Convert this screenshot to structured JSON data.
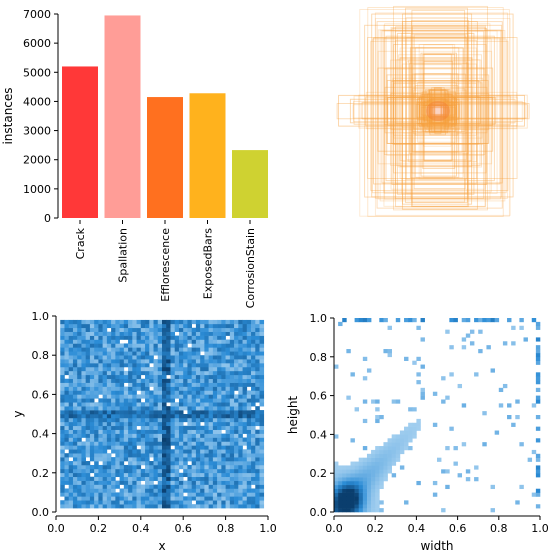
{
  "chart_data": [
    {
      "type": "bar",
      "ylabel": "instances",
      "categories": [
        "Crack",
        "Spallation",
        "Efflorescence",
        "ExposedBars",
        "CorrosionStain"
      ],
      "values": [
        5200,
        6950,
        4150,
        4280,
        2330
      ],
      "colors": [
        "#ff3838",
        "#ff9d97",
        "#ff701f",
        "#ffb21d",
        "#cfd231"
      ],
      "ylim": [
        0,
        7000
      ],
      "yticks": [
        0,
        1000,
        2000,
        3000,
        4000,
        5000,
        6000,
        7000
      ],
      "ytick_labels": [
        "0",
        "1000",
        "2000",
        "3000",
        "4000",
        "5000",
        "6000",
        "7000"
      ],
      "grid": false
    },
    {
      "type": "scatter",
      "subtype": "box-overlay",
      "colors": {
        "stroke": "#f7a03c",
        "center": "#f0642a"
      }
    },
    {
      "type": "heatmap",
      "xlabel": "x",
      "ylabel": "y",
      "xlim": [
        0,
        1
      ],
      "ylim": [
        0,
        1
      ],
      "xticks": [
        0.0,
        0.2,
        0.4,
        0.6,
        0.8,
        1.0
      ],
      "xtick_labels": [
        "0.0",
        "0.2",
        "0.4",
        "0.6",
        "0.8",
        "1.0"
      ],
      "yticks": [
        0.0,
        0.2,
        0.4,
        0.6,
        0.8,
        1.0
      ],
      "ytick_labels": [
        "0.0",
        "0.2",
        "0.4",
        "0.6",
        "0.8",
        "1.0"
      ],
      "bins": 50,
      "colors": {
        "low": "#c7e3f7",
        "high": "#0a3e6e"
      }
    },
    {
      "type": "heatmap",
      "xlabel": "width",
      "ylabel": "height",
      "xlim": [
        0,
        1
      ],
      "ylim": [
        0,
        1
      ],
      "xticks": [
        0.0,
        0.2,
        0.4,
        0.6,
        0.8,
        1.0
      ],
      "xtick_labels": [
        "0.0",
        "0.2",
        "0.4",
        "0.6",
        "0.8",
        "1.0"
      ],
      "yticks": [
        0.0,
        0.2,
        0.4,
        0.6,
        0.8,
        1.0
      ],
      "ytick_labels": [
        "0.0",
        "0.2",
        "0.4",
        "0.6",
        "0.8",
        "1.0"
      ],
      "bins": 50,
      "colors": {
        "low": "#c7e3f7",
        "high": "#0a3e6e"
      }
    }
  ]
}
